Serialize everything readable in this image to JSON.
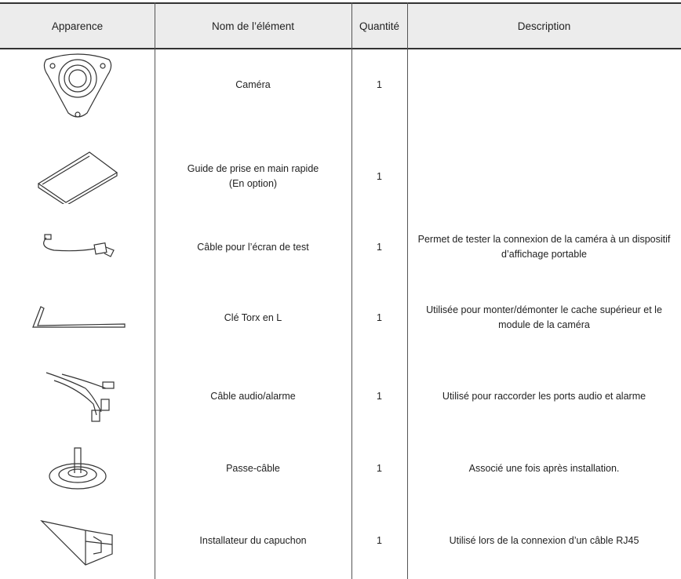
{
  "header": {
    "columns": [
      "Apparence",
      "Nom de l’élément",
      "Quantité",
      "Description"
    ]
  },
  "table": {
    "rows": [
      {
        "name": "Caméra",
        "quantity": 1
      },
      {
        "name": "Guide de prise en main rapide\n(En option)",
        "quantity": 1
      },
      {
        "name": "Câble pour l’écran de test",
        "quantity": 1,
        "description": "Permet de tester la connexion de la caméra à un dispositif d’affichage portable"
      },
      {
        "name": "Clé Torx en L",
        "quantity": 1,
        "description": "Utilisée pour monter/démonter le cache supérieur et le module de la caméra"
      },
      {
        "name": "Câble audio/alarme",
        "quantity": 1,
        "description": "Utilisé pour raccorder les ports audio et alarme"
      },
      {
        "name": "Passe-câble",
        "quantity": 1,
        "description": "Associé une fois après installation."
      },
      {
        "name": "Installateur du capuchon",
        "quantity": 1,
        "description": "Utilisé lors de la connexion d’un câble RJ45"
      }
    ]
  }
}
